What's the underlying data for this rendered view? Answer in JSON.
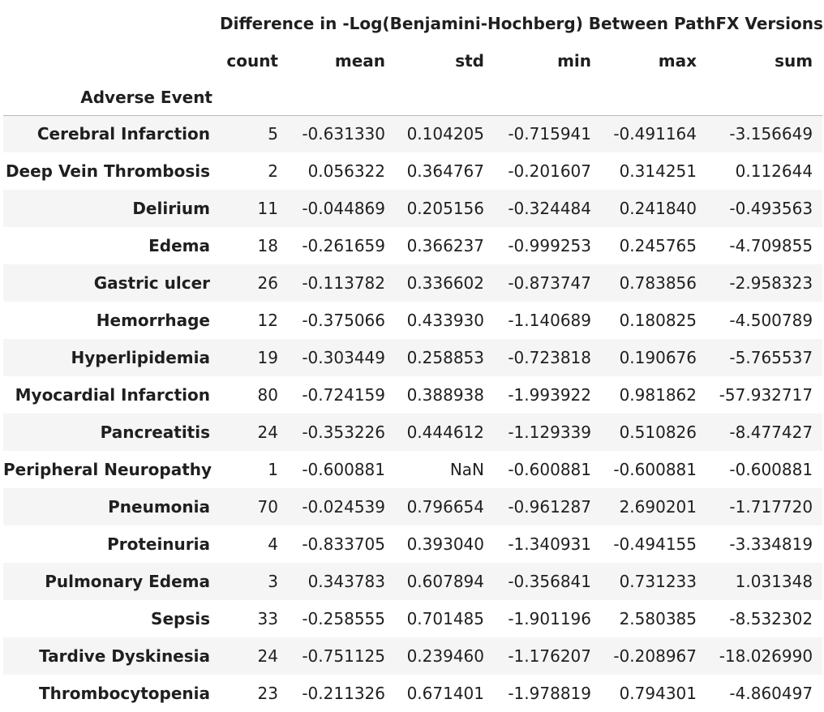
{
  "table": {
    "group_header": "Difference in -Log(Benjamini-Hochberg) Between PathFX Versions",
    "index_name": "Adverse Event",
    "columns": [
      "count",
      "mean",
      "std",
      "min",
      "max",
      "sum"
    ],
    "rows": [
      {
        "label": "Cerebral Infarction",
        "values": [
          "5",
          "-0.631330",
          "0.104205",
          "-0.715941",
          "-0.491164",
          "-3.156649"
        ]
      },
      {
        "label": "Deep Vein Thrombosis",
        "values": [
          "2",
          "0.056322",
          "0.364767",
          "-0.201607",
          "0.314251",
          "0.112644"
        ]
      },
      {
        "label": "Delirium",
        "values": [
          "11",
          "-0.044869",
          "0.205156",
          "-0.324484",
          "0.241840",
          "-0.493563"
        ]
      },
      {
        "label": "Edema",
        "values": [
          "18",
          "-0.261659",
          "0.366237",
          "-0.999253",
          "0.245765",
          "-4.709855"
        ]
      },
      {
        "label": "Gastric ulcer",
        "values": [
          "26",
          "-0.113782",
          "0.336602",
          "-0.873747",
          "0.783856",
          "-2.958323"
        ]
      },
      {
        "label": "Hemorrhage",
        "values": [
          "12",
          "-0.375066",
          "0.433930",
          "-1.140689",
          "0.180825",
          "-4.500789"
        ]
      },
      {
        "label": "Hyperlipidemia",
        "values": [
          "19",
          "-0.303449",
          "0.258853",
          "-0.723818",
          "0.190676",
          "-5.765537"
        ]
      },
      {
        "label": "Myocardial Infarction",
        "values": [
          "80",
          "-0.724159",
          "0.388938",
          "-1.993922",
          "0.981862",
          "-57.932717"
        ]
      },
      {
        "label": "Pancreatitis",
        "values": [
          "24",
          "-0.353226",
          "0.444612",
          "-1.129339",
          "0.510826",
          "-8.477427"
        ]
      },
      {
        "label": "Peripheral Neuropathy",
        "values": [
          "1",
          "-0.600881",
          "NaN",
          "-0.600881",
          "-0.600881",
          "-0.600881"
        ]
      },
      {
        "label": "Pneumonia",
        "values": [
          "70",
          "-0.024539",
          "0.796654",
          "-0.961287",
          "2.690201",
          "-1.717720"
        ]
      },
      {
        "label": "Proteinuria",
        "values": [
          "4",
          "-0.833705",
          "0.393040",
          "-1.340931",
          "-0.494155",
          "-3.334819"
        ]
      },
      {
        "label": "Pulmonary Edema",
        "values": [
          "3",
          "0.343783",
          "0.607894",
          "-0.356841",
          "0.731233",
          "1.031348"
        ]
      },
      {
        "label": "Sepsis",
        "values": [
          "33",
          "-0.258555",
          "0.701485",
          "-1.901196",
          "2.580385",
          "-8.532302"
        ]
      },
      {
        "label": "Tardive Dyskinesia",
        "values": [
          "24",
          "-0.751125",
          "0.239460",
          "-1.176207",
          "-0.208967",
          "-18.026990"
        ]
      },
      {
        "label": "Thrombocytopenia",
        "values": [
          "23",
          "-0.211326",
          "0.671401",
          "-1.978819",
          "0.794301",
          "-4.860497"
        ]
      }
    ]
  }
}
